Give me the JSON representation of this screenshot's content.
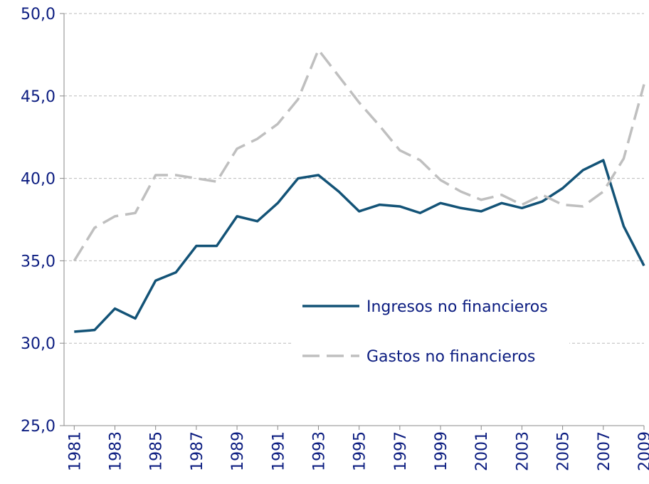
{
  "chart_data": {
    "type": "line",
    "x": [
      1981,
      1982,
      1983,
      1984,
      1985,
      1986,
      1987,
      1988,
      1989,
      1990,
      1991,
      1992,
      1993,
      1994,
      1995,
      1996,
      1997,
      1998,
      1999,
      2000,
      2001,
      2002,
      2003,
      2004,
      2005,
      2006,
      2007,
      2008,
      2009
    ],
    "series": [
      {
        "name": "Ingresos no financieros",
        "color": "#135377",
        "dashed": false,
        "values": [
          30.7,
          30.8,
          32.1,
          31.5,
          33.8,
          34.3,
          35.9,
          35.9,
          37.7,
          37.4,
          38.5,
          40.0,
          40.2,
          39.2,
          38.0,
          38.4,
          38.3,
          37.9,
          38.5,
          38.2,
          38.0,
          38.5,
          38.2,
          38.6,
          39.4,
          40.5,
          41.1,
          37.1,
          34.7
        ]
      },
      {
        "name": "Gastos no financieros",
        "color": "#bfbfbf",
        "dashed": true,
        "values": [
          35.0,
          37.0,
          37.7,
          37.9,
          40.2,
          40.2,
          40.0,
          39.8,
          41.8,
          42.4,
          43.3,
          44.8,
          47.8,
          46.2,
          44.6,
          43.2,
          41.7,
          41.1,
          39.9,
          39.2,
          38.7,
          39.0,
          38.4,
          39.0,
          38.4,
          38.3,
          39.2,
          41.2,
          45.7
        ]
      }
    ],
    "xlim": [
      1980.5,
      2009
    ],
    "xticks": [
      1981,
      1983,
      1985,
      1987,
      1989,
      1991,
      1993,
      1995,
      1997,
      1999,
      2001,
      2003,
      2005,
      2007,
      2009
    ],
    "ylim": [
      25,
      50
    ],
    "yticks": [
      {
        "value": 25,
        "label": "25,0"
      },
      {
        "value": 30,
        "label": "30,0"
      },
      {
        "value": 35,
        "label": "35,0"
      },
      {
        "value": 40,
        "label": "40,0"
      },
      {
        "value": 45,
        "label": "45,0"
      },
      {
        "value": 50,
        "label": "50,0"
      }
    ],
    "grid": true,
    "legend": "center"
  }
}
